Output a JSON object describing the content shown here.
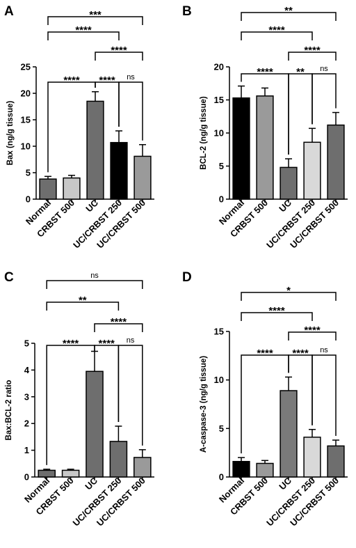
{
  "figure": {
    "panel_labels": [
      "A",
      "B",
      "C",
      "D"
    ]
  },
  "chart_data": [
    {
      "panel": "A",
      "type": "bar",
      "ylabel": "Bax (ng/g tissue)",
      "ylim": [
        0,
        25
      ],
      "yticks": [
        "0",
        "5",
        "10",
        "15",
        "20",
        "25"
      ],
      "categories": [
        "Normal",
        "CRBST 500",
        "UC",
        "UC/CRBST 250",
        "UC/CRBST 500"
      ],
      "values": [
        3.8,
        4.0,
        18.5,
        10.7,
        8.1
      ],
      "errors": [
        0.5,
        0.5,
        1.8,
        2.2,
        2.2
      ],
      "colors": [
        "#6e6e6e",
        "#c8c8c8",
        "#6e6e6e",
        "#000000",
        "#9a9a9a"
      ],
      "annotations": [
        {
          "from": 0,
          "to": 4,
          "text": "***"
        },
        {
          "from": 0,
          "to": 3,
          "text": "****"
        },
        {
          "from": 2,
          "to": 4,
          "text": "****"
        },
        {
          "from": 0,
          "to": 2,
          "text": "****"
        },
        {
          "from": 2,
          "to": 3,
          "text": "****"
        },
        {
          "from": 3,
          "to": 4,
          "text": "ns"
        }
      ]
    },
    {
      "panel": "B",
      "type": "bar",
      "ylabel": "BCL-2 (ng/g tissue)",
      "ylim": [
        0,
        20
      ],
      "yticks": [
        "0",
        "5",
        "10",
        "15",
        "20"
      ],
      "categories": [
        "Normal",
        "CRBST 500",
        "UC",
        "UC/CRBST 250",
        "UC/CRBST 500"
      ],
      "values": [
        15.3,
        15.6,
        4.8,
        8.6,
        11.2
      ],
      "errors": [
        1.8,
        1.2,
        1.3,
        2.1,
        1.9
      ],
      "colors": [
        "#000000",
        "#9a9a9a",
        "#6e6e6e",
        "#d9d9d9",
        "#6e6e6e"
      ],
      "annotations": [
        {
          "from": 0,
          "to": 4,
          "text": "**"
        },
        {
          "from": 0,
          "to": 3,
          "text": "****"
        },
        {
          "from": 2,
          "to": 4,
          "text": "****"
        },
        {
          "from": 0,
          "to": 2,
          "text": "****"
        },
        {
          "from": 2,
          "to": 3,
          "text": "**"
        },
        {
          "from": 3,
          "to": 4,
          "text": "ns"
        }
      ]
    },
    {
      "panel": "C",
      "type": "bar",
      "ylabel": "Bax:BCL-2 ratio",
      "ylim": [
        0,
        5
      ],
      "yticks": [
        "0",
        "1",
        "2",
        "3",
        "4",
        "5"
      ],
      "categories": [
        "Normal",
        "CRBST 500",
        "UC",
        "UC/CRBST 250",
        "UC/CRBST 500"
      ],
      "values": [
        0.25,
        0.25,
        3.95,
        1.33,
        0.73
      ],
      "errors": [
        0.04,
        0.04,
        0.75,
        0.57,
        0.29
      ],
      "colors": [
        "#6e6e6e",
        "#c8c8c8",
        "#6e6e6e",
        "#6e6e6e",
        "#9a9a9a"
      ],
      "annotations": [
        {
          "from": 0,
          "to": 4,
          "text": "ns"
        },
        {
          "from": 0,
          "to": 3,
          "text": "**"
        },
        {
          "from": 2,
          "to": 4,
          "text": "****"
        },
        {
          "from": 0,
          "to": 2,
          "text": "****"
        },
        {
          "from": 2,
          "to": 3,
          "text": "****"
        },
        {
          "from": 3,
          "to": 4,
          "text": "ns"
        }
      ]
    },
    {
      "panel": "D",
      "type": "bar",
      "ylabel": "A-caspase-3 (ng/g tissue)",
      "ylim": [
        0,
        15
      ],
      "yticks": [
        "0",
        "5",
        "10",
        "15"
      ],
      "categories": [
        "Normal",
        "CRBST 500",
        "UC",
        "UC/CRBST 250",
        "UC/CRBST 500"
      ],
      "values": [
        1.6,
        1.4,
        8.9,
        4.1,
        3.2
      ],
      "errors": [
        0.4,
        0.3,
        1.4,
        0.8,
        0.6
      ],
      "colors": [
        "#000000",
        "#9a9a9a",
        "#7a7a7a",
        "#d9d9d9",
        "#6e6e6e"
      ],
      "annotations": [
        {
          "from": 0,
          "to": 4,
          "text": "*"
        },
        {
          "from": 0,
          "to": 3,
          "text": "****"
        },
        {
          "from": 2,
          "to": 4,
          "text": "****"
        },
        {
          "from": 0,
          "to": 2,
          "text": "****"
        },
        {
          "from": 2,
          "to": 3,
          "text": "****"
        },
        {
          "from": 3,
          "to": 4,
          "text": "ns"
        }
      ]
    }
  ]
}
